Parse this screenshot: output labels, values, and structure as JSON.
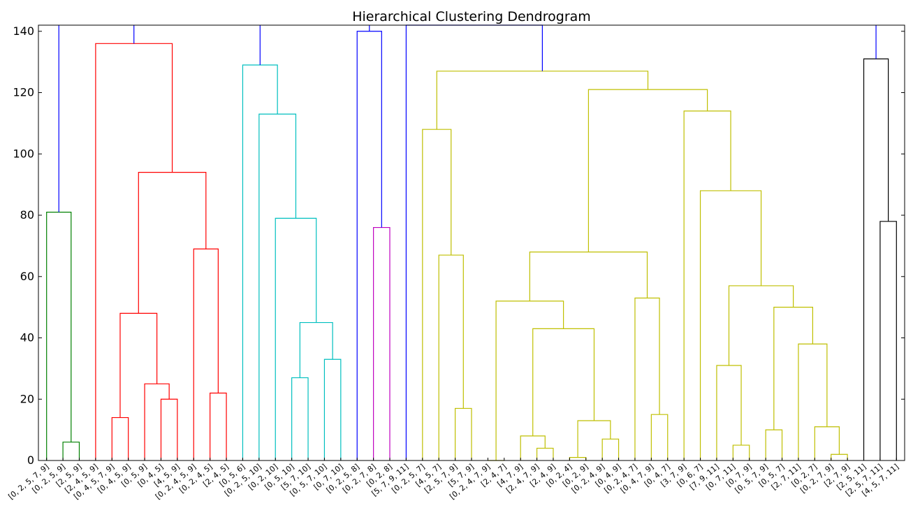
{
  "chart_data": {
    "type": "dendrogram",
    "title": "Hierarchical Clustering Dendrogram",
    "xlabel": "",
    "ylabel": "",
    "ylim": [
      0,
      142
    ],
    "yticks": [
      0,
      20,
      40,
      60,
      80,
      100,
      120,
      140
    ],
    "grid": false,
    "leaves": [
      "[0, 2, 5, 7, 9]",
      "[0, 2, 5, 9]",
      "[2, 5, 9]",
      "[2, 4, 5, 9]",
      "[0, 4, 5, 7, 9]",
      "[0, 4, 5, 9]",
      "[0, 5, 9]",
      "[0, 4, 5]",
      "[4, 5, 9]",
      "[0, 2, 4, 5, 9]",
      "[0, 2, 4, 5]",
      "[2, 4, 5]",
      "[0, 5, 6]",
      "[0, 2, 5, 10]",
      "[0, 2, 10]",
      "[0, 5, 10]",
      "[5, 7, 10]",
      "[0, 5, 7, 10]",
      "[0, 7, 10]",
      "[0, 2, 5, 8]",
      "[0, 2, 7, 8]",
      "[0, 2, 8]",
      "[5, 7, 9, 11]",
      "[0, 2, 5, 7]",
      "[4, 5, 7]",
      "[2, 5, 7, 9]",
      "[5, 7, 9]",
      "[0, 2, 4, 7, 9]",
      "[2, 4, 7]",
      "[4, 7, 9]",
      "[2, 4, 7, 9]",
      "[2, 4, 9]",
      "[0, 2, 4]",
      "[0, 2, 9]",
      "[0, 2, 4, 9]",
      "[0, 4, 9]",
      "[0, 2, 4, 7]",
      "[0, 4, 7, 9]",
      "[0, 4, 7]",
      "[3, 7, 9]",
      "[0, 6, 7]",
      "[7, 9, 11]",
      "[0, 7, 11]",
      "[0, 7, 9]",
      "[0, 5, 7, 9]",
      "[0, 5, 7]",
      "[2, 7, 11]",
      "[0, 2, 7]",
      "[0, 2, 7, 9]",
      "[2, 7, 9]",
      "[2, 5, 11]",
      "[2, 5, 7, 11]",
      "[4, 5, 7, 11]"
    ],
    "colors": {
      "green": "#008000",
      "red": "#ff0000",
      "cyan": "#00bfbf",
      "magenta": "#bf00bf",
      "olive": "#bfbf00",
      "blue": "#0000ff",
      "black": "#000000"
    },
    "links": [
      {
        "left": 1,
        "right": 2,
        "height": 6,
        "color": "green"
      },
      {
        "left": 0,
        "right": "n0",
        "height": 81,
        "color": "green"
      },
      {
        "left": 4,
        "right": 5,
        "height": 14,
        "color": "red"
      },
      {
        "left": 7,
        "right": 8,
        "height": 20,
        "color": "red"
      },
      {
        "left": 6,
        "right": "n3",
        "height": 25,
        "color": "red"
      },
      {
        "left": "n2",
        "right": "n4",
        "height": 48,
        "color": "red"
      },
      {
        "left": 10,
        "right": 11,
        "height": 22,
        "color": "red"
      },
      {
        "left": 9,
        "right": "n6",
        "height": 69,
        "color": "red"
      },
      {
        "left": "n5",
        "right": "n7",
        "height": 94,
        "color": "red"
      },
      {
        "left": 3,
        "right": "n8",
        "height": 136,
        "color": "red"
      },
      {
        "left": 15,
        "right": 16,
        "height": 27,
        "color": "cyan"
      },
      {
        "left": 17,
        "right": 18,
        "height": 33,
        "color": "cyan"
      },
      {
        "left": "n10",
        "right": "n11",
        "height": 45,
        "color": "cyan"
      },
      {
        "left": 14,
        "right": "n12",
        "height": 79,
        "color": "cyan"
      },
      {
        "left": 13,
        "right": "n13",
        "height": 113,
        "color": "cyan"
      },
      {
        "left": 12,
        "right": "n14",
        "height": 129,
        "color": "cyan"
      },
      {
        "left": 20,
        "right": 21,
        "height": 76,
        "color": "magenta"
      },
      {
        "left": 19,
        "right": "n16",
        "height": 140,
        "color": "blue"
      },
      {
        "left": 25,
        "right": 26,
        "height": 17,
        "color": "olive"
      },
      {
        "left": 24,
        "right": "n18",
        "height": 67,
        "color": "olive"
      },
      {
        "left": 23,
        "right": "n19",
        "height": 108,
        "color": "olive"
      },
      {
        "left": 30,
        "right": 31,
        "height": 4,
        "color": "olive"
      },
      {
        "left": 29,
        "right": "n21",
        "height": 8,
        "color": "olive"
      },
      {
        "left": 32,
        "right": 33,
        "height": 1,
        "color": "olive"
      },
      {
        "left": 34,
        "right": 35,
        "height": 7,
        "color": "olive"
      },
      {
        "left": "n23",
        "right": "n24",
        "height": 13,
        "color": "olive"
      },
      {
        "left": "n22",
        "right": "n25",
        "height": 43,
        "color": "olive"
      },
      {
        "left": 27,
        "right": 28,
        "height": 0,
        "color": "olive"
      },
      {
        "left": "n27",
        "right": "n26",
        "height": 52,
        "color": "olive"
      },
      {
        "left": 37,
        "right": 38,
        "height": 15,
        "color": "olive"
      },
      {
        "left": 36,
        "right": "n29",
        "height": 53,
        "color": "olive"
      },
      {
        "left": "n28",
        "right": "n30",
        "height": 68,
        "color": "olive"
      },
      {
        "left": 42,
        "right": 43,
        "height": 5,
        "color": "olive"
      },
      {
        "left": 41,
        "right": "n32",
        "height": 31,
        "color": "olive"
      },
      {
        "left": 44,
        "right": 45,
        "height": 10,
        "color": "olive"
      },
      {
        "left": 48,
        "right": 49,
        "height": 2,
        "color": "olive"
      },
      {
        "left": 47,
        "right": "n35",
        "height": 11,
        "color": "olive"
      },
      {
        "left": 46,
        "right": "n36",
        "height": 38,
        "color": "olive"
      },
      {
        "left": "n34",
        "right": "n37",
        "height": 50,
        "color": "olive"
      },
      {
        "left": "n33",
        "right": "n38",
        "height": 57,
        "color": "olive"
      },
      {
        "left": 40,
        "right": "n39",
        "height": 88,
        "color": "olive"
      },
      {
        "left": 39,
        "right": "n40",
        "height": 114,
        "color": "olive"
      },
      {
        "left": "n31",
        "right": "n41",
        "height": 121,
        "color": "olive"
      },
      {
        "left": "n20",
        "right": "n42",
        "height": 127,
        "color": "olive"
      },
      {
        "left": 22,
        "right": "n43",
        "height": 142,
        "color": "blue"
      },
      {
        "left": 51,
        "right": 52,
        "height": 78,
        "color": "black"
      },
      {
        "left": 50,
        "right": "n45",
        "height": 131,
        "color": "black"
      }
    ],
    "top_stems": [
      {
        "node": "n1",
        "color": "blue"
      },
      {
        "node": "n9",
        "color": "blue"
      },
      {
        "node": "n15",
        "color": "blue"
      },
      {
        "node": "n17",
        "color": "blue"
      },
      {
        "node": "n44",
        "color": "blue"
      },
      {
        "node": "n46",
        "color": "blue"
      }
    ]
  }
}
